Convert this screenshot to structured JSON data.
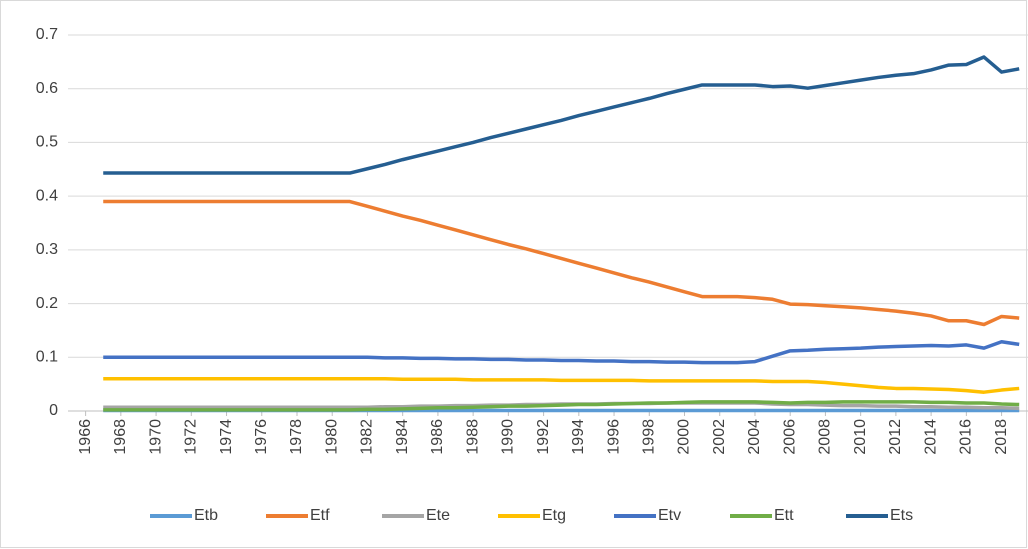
{
  "chart_data": {
    "type": "line",
    "x": [
      1967,
      1968,
      1969,
      1970,
      1971,
      1972,
      1973,
      1974,
      1975,
      1976,
      1977,
      1978,
      1979,
      1980,
      1981,
      1982,
      1983,
      1984,
      1985,
      1986,
      1987,
      1988,
      1989,
      1990,
      1991,
      1992,
      1993,
      1994,
      1995,
      1996,
      1997,
      1998,
      1999,
      2000,
      2001,
      2002,
      2003,
      2004,
      2005,
      2006,
      2007,
      2008,
      2009,
      2010,
      2011,
      2012,
      2013,
      2014,
      2015,
      2016,
      2017,
      2018,
      2019
    ],
    "xlim": [
      1965,
      2019.5
    ],
    "xticks": [
      1966,
      1968,
      1970,
      1972,
      1974,
      1976,
      1978,
      1980,
      1982,
      1984,
      1986,
      1988,
      1990,
      1992,
      1994,
      1996,
      1998,
      2000,
      2002,
      2004,
      2006,
      2008,
      2010,
      2012,
      2014,
      2016,
      2018
    ],
    "ylim": [
      0,
      0.7
    ],
    "yticks": [
      0,
      0.1,
      0.2,
      0.3,
      0.4,
      0.5,
      0.6,
      0.7
    ],
    "grid": true,
    "legend": "bottom",
    "series": [
      {
        "name": "Etb",
        "color": "#5b9bd5",
        "values": [
          0.001,
          0.001,
          0.001,
          0.001,
          0.001,
          0.001,
          0.001,
          0.001,
          0.001,
          0.001,
          0.001,
          0.001,
          0.001,
          0.001,
          0.001,
          0.001,
          0.001,
          0.001,
          0.001,
          0.001,
          0.001,
          0.001,
          0.001,
          0.001,
          0.001,
          0.001,
          0.001,
          0.001,
          0.001,
          0.001,
          0.001,
          0.001,
          0.001,
          0.001,
          0.001,
          0.001,
          0.001,
          0.001,
          0.001,
          0.001,
          0.001,
          0.001,
          0.001,
          0.001,
          0.001,
          0.001,
          0.001,
          0.001,
          0.001,
          0.001,
          0.001,
          0.001,
          0.001
        ]
      },
      {
        "name": "Etf",
        "color": "#ed7d31",
        "values": [
          0.39,
          0.39,
          0.39,
          0.39,
          0.39,
          0.39,
          0.39,
          0.39,
          0.39,
          0.39,
          0.39,
          0.39,
          0.39,
          0.39,
          0.39,
          0.381,
          0.372,
          0.363,
          0.355,
          0.346,
          0.337,
          0.328,
          0.319,
          0.31,
          0.302,
          0.293,
          0.284,
          0.275,
          0.266,
          0.257,
          0.248,
          0.24,
          0.231,
          0.222,
          0.213,
          0.213,
          0.213,
          0.211,
          0.208,
          0.199,
          0.198,
          0.196,
          0.194,
          0.192,
          0.189,
          0.186,
          0.182,
          0.177,
          0.168,
          0.168,
          0.161,
          0.176,
          0.173
        ]
      },
      {
        "name": "Ete",
        "color": "#a5a5a5",
        "values": [
          0.007,
          0.007,
          0.007,
          0.007,
          0.007,
          0.007,
          0.007,
          0.007,
          0.007,
          0.007,
          0.007,
          0.007,
          0.007,
          0.007,
          0.007,
          0.007,
          0.008,
          0.008,
          0.009,
          0.009,
          0.01,
          0.01,
          0.011,
          0.011,
          0.012,
          0.012,
          0.013,
          0.013,
          0.013,
          0.014,
          0.014,
          0.014,
          0.015,
          0.015,
          0.015,
          0.015,
          0.015,
          0.015,
          0.013,
          0.012,
          0.012,
          0.011,
          0.01,
          0.01,
          0.009,
          0.009,
          0.008,
          0.008,
          0.007,
          0.007,
          0.006,
          0.006,
          0.005
        ]
      },
      {
        "name": "Etg",
        "color": "#ffc000",
        "values": [
          0.06,
          0.06,
          0.06,
          0.06,
          0.06,
          0.06,
          0.06,
          0.06,
          0.06,
          0.06,
          0.06,
          0.06,
          0.06,
          0.06,
          0.06,
          0.06,
          0.06,
          0.059,
          0.059,
          0.059,
          0.059,
          0.058,
          0.058,
          0.058,
          0.058,
          0.058,
          0.057,
          0.057,
          0.057,
          0.057,
          0.057,
          0.056,
          0.056,
          0.056,
          0.056,
          0.056,
          0.056,
          0.056,
          0.055,
          0.055,
          0.055,
          0.053,
          0.05,
          0.047,
          0.044,
          0.042,
          0.042,
          0.041,
          0.04,
          0.038,
          0.035,
          0.039,
          0.042
        ]
      },
      {
        "name": "Etv",
        "color": "#4472c4",
        "values": [
          0.1,
          0.1,
          0.1,
          0.1,
          0.1,
          0.1,
          0.1,
          0.1,
          0.1,
          0.1,
          0.1,
          0.1,
          0.1,
          0.1,
          0.1,
          0.1,
          0.099,
          0.099,
          0.098,
          0.098,
          0.097,
          0.097,
          0.096,
          0.096,
          0.095,
          0.095,
          0.094,
          0.094,
          0.093,
          0.093,
          0.092,
          0.092,
          0.091,
          0.091,
          0.09,
          0.09,
          0.09,
          0.092,
          0.102,
          0.112,
          0.113,
          0.115,
          0.116,
          0.117,
          0.119,
          0.12,
          0.121,
          0.122,
          0.121,
          0.123,
          0.117,
          0.129,
          0.124
        ]
      },
      {
        "name": "Ett",
        "color": "#70ad47",
        "values": [
          0.002,
          0.002,
          0.002,
          0.002,
          0.002,
          0.002,
          0.002,
          0.002,
          0.002,
          0.002,
          0.002,
          0.002,
          0.002,
          0.002,
          0.002,
          0.003,
          0.003,
          0.004,
          0.005,
          0.006,
          0.006,
          0.007,
          0.008,
          0.009,
          0.009,
          0.01,
          0.011,
          0.012,
          0.012,
          0.013,
          0.014,
          0.015,
          0.015,
          0.016,
          0.017,
          0.017,
          0.017,
          0.017,
          0.016,
          0.015,
          0.016,
          0.016,
          0.017,
          0.017,
          0.017,
          0.017,
          0.017,
          0.016,
          0.016,
          0.015,
          0.015,
          0.013,
          0.012
        ]
      },
      {
        "name": "Ets",
        "color": "#255e91",
        "values": [
          0.443,
          0.443,
          0.443,
          0.443,
          0.443,
          0.443,
          0.443,
          0.443,
          0.443,
          0.443,
          0.443,
          0.443,
          0.443,
          0.443,
          0.443,
          0.451,
          0.459,
          0.468,
          0.476,
          0.484,
          0.492,
          0.5,
          0.509,
          0.517,
          0.525,
          0.533,
          0.541,
          0.55,
          0.558,
          0.566,
          0.574,
          0.582,
          0.591,
          0.599,
          0.607,
          0.607,
          0.607,
          0.607,
          0.604,
          0.605,
          0.601,
          0.606,
          0.611,
          0.616,
          0.621,
          0.625,
          0.628,
          0.635,
          0.644,
          0.645,
          0.659,
          0.631,
          0.637
        ]
      }
    ]
  }
}
